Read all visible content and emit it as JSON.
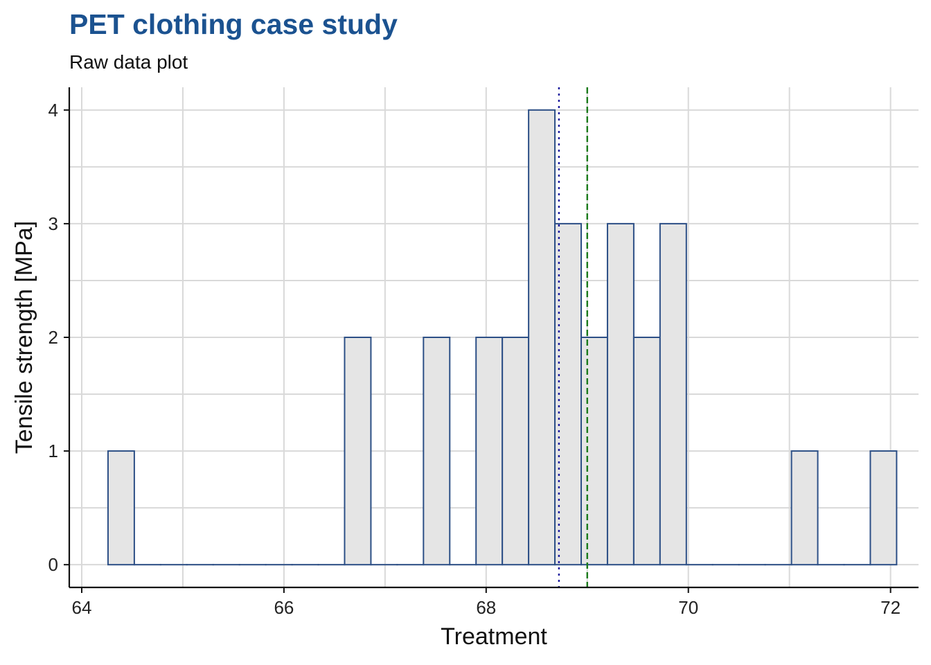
{
  "title": "PET clothing case study",
  "subtitle": "Raw data plot",
  "chart_data": {
    "type": "bar",
    "subtype": "histogram",
    "title": "PET clothing case study",
    "subtitle": "Raw data plot",
    "xlabel": "Treatment",
    "ylabel": "Tensile strength [MPa]",
    "xlim": [
      64,
      72.4
    ],
    "ylim": [
      -0.2,
      4.2
    ],
    "x_ticks": [
      64,
      66,
      68,
      70,
      72
    ],
    "y_ticks": [
      0,
      1,
      2,
      3,
      4
    ],
    "grid": true,
    "bin_width": 0.26,
    "bins": [
      {
        "x0": 64.26,
        "x1": 64.52,
        "count": 1
      },
      {
        "x0": 64.52,
        "x1": 64.78,
        "count": 0
      },
      {
        "x0": 64.78,
        "x1": 65.04,
        "count": 0
      },
      {
        "x0": 65.04,
        "x1": 65.3,
        "count": 0
      },
      {
        "x0": 65.3,
        "x1": 65.56,
        "count": 0
      },
      {
        "x0": 65.56,
        "x1": 65.82,
        "count": 0
      },
      {
        "x0": 65.82,
        "x1": 66.08,
        "count": 0
      },
      {
        "x0": 66.08,
        "x1": 66.34,
        "count": 0
      },
      {
        "x0": 66.34,
        "x1": 66.6,
        "count": 0
      },
      {
        "x0": 66.6,
        "x1": 66.86,
        "count": 2
      },
      {
        "x0": 66.86,
        "x1": 67.12,
        "count": 0
      },
      {
        "x0": 67.12,
        "x1": 67.38,
        "count": 0
      },
      {
        "x0": 67.38,
        "x1": 67.64,
        "count": 2
      },
      {
        "x0": 67.64,
        "x1": 67.9,
        "count": 0
      },
      {
        "x0": 67.9,
        "x1": 68.16,
        "count": 2
      },
      {
        "x0": 68.16,
        "x1": 68.42,
        "count": 2
      },
      {
        "x0": 68.42,
        "x1": 68.68,
        "count": 4
      },
      {
        "x0": 68.68,
        "x1": 68.94,
        "count": 3
      },
      {
        "x0": 68.94,
        "x1": 69.2,
        "count": 2
      },
      {
        "x0": 69.2,
        "x1": 69.46,
        "count": 3
      },
      {
        "x0": 69.46,
        "x1": 69.72,
        "count": 2
      },
      {
        "x0": 69.72,
        "x1": 69.98,
        "count": 3
      },
      {
        "x0": 69.98,
        "x1": 70.24,
        "count": 0
      },
      {
        "x0": 70.24,
        "x1": 70.5,
        "count": 0
      },
      {
        "x0": 70.5,
        "x1": 70.76,
        "count": 0
      },
      {
        "x0": 70.76,
        "x1": 71.02,
        "count": 0
      },
      {
        "x0": 71.02,
        "x1": 71.28,
        "count": 1
      },
      {
        "x0": 71.28,
        "x1": 71.54,
        "count": 0
      },
      {
        "x0": 71.54,
        "x1": 71.8,
        "count": 0
      },
      {
        "x0": 71.8,
        "x1": 72.06,
        "count": 1
      }
    ],
    "reference_lines": [
      {
        "x": 68.72,
        "style": "dotted",
        "color": "#1a1a9e"
      },
      {
        "x": 69.0,
        "style": "dashed",
        "color": "#1a7a1a"
      }
    ],
    "colors": {
      "bar_fill": "#e5e5e5",
      "bar_stroke": "#2c4f86",
      "grid": "#d9d9d9",
      "axis": "#111111",
      "title": "#1b5290"
    }
  }
}
